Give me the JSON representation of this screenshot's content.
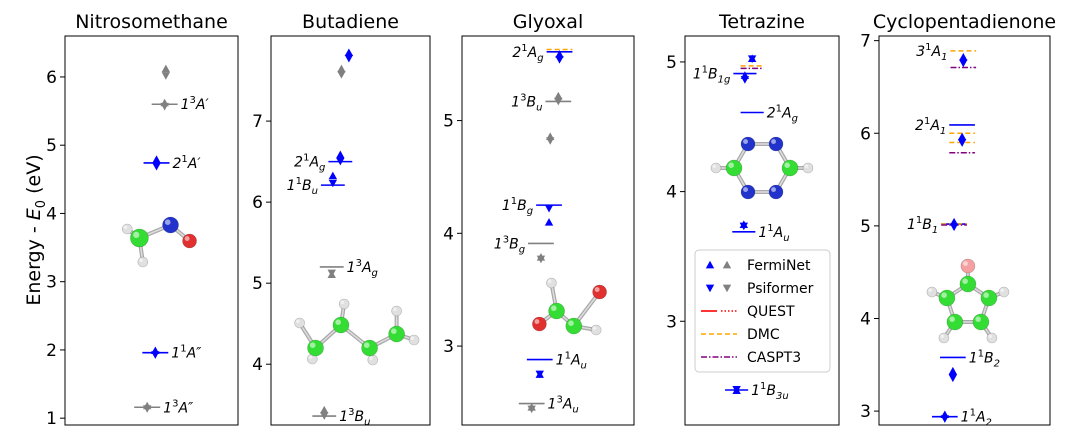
{
  "chart_data": {
    "type": "scatter",
    "ylabel": "Energy - E_0 (eV)",
    "legend": {
      "placement": "inside Tetrazine panel, lower",
      "entries": [
        {
          "label": "FermiNet",
          "marker": "triangle-up",
          "color": "#0000ff",
          "color2": "#808080"
        },
        {
          "label": "Psiformer",
          "marker": "triangle-down",
          "color": "#0000ff",
          "color2": "#808080"
        },
        {
          "label": "QUEST",
          "style": "solid-dotted",
          "color": "#ff0000"
        },
        {
          "label": "DMC",
          "style": "dashed",
          "color": "#ffa500"
        },
        {
          "label": "CASPT3",
          "style": "dashdot",
          "color": "#800080"
        }
      ]
    },
    "panels": [
      {
        "title": "Nitrosomethane",
        "ylim": [
          0.9,
          6.6
        ],
        "yticks": [
          1,
          2,
          3,
          4,
          5,
          6
        ],
        "molecule": "nitrosomethane",
        "states": [
          {
            "label": "1^3A''",
            "color": "#808080",
            "quest": 1.16,
            "ferminet": 1.15,
            "psiformer": 1.17,
            "label_side": "right"
          },
          {
            "label": "1^1A''",
            "color": "#0000ff",
            "quest": 1.96,
            "ferminet": 1.96,
            "psiformer": 1.96,
            "label_side": "right"
          },
          {
            "label": "2^1A'",
            "color": "#0000ff",
            "quest": 4.74,
            "ferminet": 4.76,
            "psiformer": 4.72,
            "label_side": "right"
          },
          {
            "label": "1^3A'",
            "color": "#808080",
            "quest": 5.6,
            "ferminet": 5.59,
            "psiformer": 5.6,
            "label_side": "right"
          },
          {
            "color": "#808080",
            "ferminet": 6.09,
            "psiformer": 6.05
          }
        ]
      },
      {
        "title": "Butadiene",
        "ylim": [
          3.25,
          8.05
        ],
        "yticks": [
          4,
          5,
          6,
          7
        ],
        "molecule": "butadiene",
        "states": [
          {
            "label": "1^3B_u",
            "color": "#808080",
            "quest": 3.36,
            "ferminet": 3.41,
            "psiformer": 3.39,
            "label_side": "right"
          },
          {
            "label": "1^3A_g",
            "color": "#808080",
            "quest": 5.2,
            "ferminet": 5.08,
            "psiformer": 5.15,
            "label_side": "right"
          },
          {
            "label": "1^1B_u",
            "color": "#0000ff",
            "quest": 6.21,
            "ferminet": 6.3,
            "psiformer": 6.26,
            "label_side": "left"
          },
          {
            "label": "2^1A_g",
            "color": "#0000ff",
            "quest": 6.5,
            "ferminet": 6.56,
            "psiformer": 6.53,
            "label_side": "left"
          },
          {
            "color": "#808080",
            "ferminet": 7.62,
            "psiformer": 7.6
          },
          {
            "color": "#0000ff",
            "ferminet": 7.82,
            "psiformer": 7.8
          }
        ]
      },
      {
        "title": "Glyoxal",
        "ylim": [
          2.3,
          5.75
        ],
        "yticks": [
          3,
          4,
          5
        ],
        "molecule": "glyoxal",
        "states": [
          {
            "label": "1^3A_u",
            "color": "#808080",
            "quest": 2.49,
            "ferminet": 2.44,
            "psiformer": 2.46,
            "label_side": "right"
          },
          {
            "label": "1^1A_u",
            "color": "#0000ff",
            "quest": 2.88,
            "ferminet": 2.73,
            "psiformer": 2.77,
            "label_side": "right"
          },
          {
            "label": "1^3B_g",
            "color": "#808080",
            "quest": 3.91,
            "ferminet": 3.77,
            "psiformer": 3.79,
            "label_side": "left"
          },
          {
            "label": "1^1B_g",
            "color": "#0000ff",
            "quest": 4.25,
            "ferminet": 4.08,
            "psiformer": 4.24,
            "label_side": "left"
          },
          {
            "color": "#808080",
            "ferminet": 4.84,
            "psiformer": 4.84
          },
          {
            "label": "1^3B_u",
            "color": "#808080",
            "quest": 5.17,
            "ferminet": 5.2,
            "psiformer": 5.19,
            "label_side": "left"
          },
          {
            "label": "2^1A_g",
            "color": "#0000ff",
            "quest": 5.61,
            "dmc": 5.63,
            "ferminet": 5.57,
            "psiformer": 5.56,
            "label_side": "left"
          }
        ]
      },
      {
        "title": "Tetrazine",
        "ylim": [
          2.2,
          5.2
        ],
        "yticks": [
          3,
          4,
          5
        ],
        "molecule": "tetrazine",
        "states": [
          {
            "label": "1^1B_3u",
            "color": "#0000ff",
            "quest": 2.47,
            "ferminet": 2.45,
            "psiformer": 2.49,
            "label_side": "right"
          },
          {
            "label": "1^1A_u",
            "color": "#0000ff",
            "quest": 3.69,
            "ferminet": 3.73,
            "psiformer": 3.75,
            "label_side": "right"
          },
          {
            "label": "1^1B_1g",
            "color": "#0000ff",
            "quest": 4.91,
            "ferminet": 4.88,
            "psiformer": 4.88,
            "label_side": "left"
          },
          {
            "label": "2^1A_g",
            "color": "#0000ff",
            "quest": 4.61,
            "dmc": 4.97,
            "caspt3": 4.95,
            "ferminet": 5.01,
            "psiformer": 5.04,
            "label_side": "right"
          }
        ]
      },
      {
        "title": "Cyclopentadienone",
        "ylim": [
          2.85,
          7.05
        ],
        "yticks": [
          3,
          4,
          5,
          6,
          7
        ],
        "molecule": "cyclopentadienone",
        "states": [
          {
            "label": "1^1A_2",
            "color": "#0000ff",
            "quest": 2.94,
            "ferminet": 2.94,
            "psiformer": 2.94,
            "label_side": "right"
          },
          {
            "label": "1^1B_2",
            "color": "#0000ff",
            "quest": 3.58,
            "ferminet": 3.41,
            "psiformer": 3.38,
            "label_side": "right"
          },
          {
            "label": "1^1B_1",
            "color": "#0000ff",
            "quest": 5.02,
            "dmc": 5.02,
            "caspt3": 5.01,
            "ferminet": 5.02,
            "psiformer": 5.01,
            "label_side": "left"
          },
          {
            "label": "2^1A_1",
            "color": "#0000ff",
            "quest": 6.09,
            "dmc": 6.0,
            "dmc2": 5.9,
            "caspt3": 5.79,
            "ferminet": 5.94,
            "psiformer": 5.92,
            "label_side": "left"
          },
          {
            "label": "3^1A_1",
            "color": "#0000ff",
            "dmc": 6.89,
            "caspt3": 6.71,
            "ferminet": 6.8,
            "psiformer": 6.78,
            "label_side": "left"
          }
        ]
      }
    ]
  }
}
